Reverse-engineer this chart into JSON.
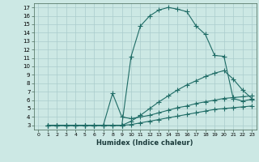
{
  "xlabel": "Humidex (Indice chaleur)",
  "bg_color": "#cce8e4",
  "grid_color": "#aacccc",
  "line_color": "#1e6b65",
  "xlim": [
    -0.5,
    23.5
  ],
  "ylim": [
    2.5,
    17.5
  ],
  "xticks": [
    0,
    1,
    2,
    3,
    4,
    5,
    6,
    7,
    8,
    9,
    10,
    11,
    12,
    13,
    14,
    15,
    16,
    17,
    18,
    19,
    20,
    21,
    22,
    23
  ],
  "yticks": [
    3,
    4,
    5,
    6,
    7,
    8,
    9,
    10,
    11,
    12,
    13,
    14,
    15,
    16,
    17
  ],
  "curve1_x": [
    1,
    2,
    3,
    4,
    5,
    6,
    7,
    9,
    10,
    11,
    12,
    13,
    14,
    15,
    16,
    17,
    18,
    19,
    20,
    21,
    22,
    23
  ],
  "curve1_y": [
    3,
    3,
    3,
    3,
    3,
    3,
    3,
    3,
    11.2,
    14.8,
    16.0,
    16.7,
    17.0,
    16.8,
    16.5,
    14.8,
    13.8,
    11.3,
    11.2,
    6.2,
    5.9,
    6.1
  ],
  "curve2_x": [
    1,
    2,
    3,
    4,
    5,
    6,
    7,
    8,
    9,
    10,
    11,
    12,
    13,
    14,
    15,
    16,
    17,
    18,
    19,
    20,
    21,
    22,
    23
  ],
  "curve2_y": [
    3,
    3,
    3,
    3,
    3,
    3,
    3,
    3,
    3,
    3.5,
    4.2,
    5.0,
    5.8,
    6.5,
    7.2,
    7.8,
    8.3,
    8.8,
    9.2,
    9.5,
    8.5,
    7.2,
    6.2
  ],
  "curve3_x": [
    1,
    2,
    3,
    4,
    5,
    6,
    7,
    8,
    9,
    10,
    11,
    12,
    13,
    14,
    15,
    16,
    17,
    18,
    19,
    20,
    21,
    22,
    23
  ],
  "curve3_y": [
    3,
    3,
    3,
    3,
    3,
    3,
    3,
    6.8,
    4.0,
    3.8,
    4.0,
    4.2,
    4.5,
    4.8,
    5.1,
    5.3,
    5.6,
    5.8,
    6.0,
    6.2,
    6.3,
    6.4,
    6.5
  ],
  "curve4_x": [
    1,
    2,
    3,
    4,
    5,
    6,
    7,
    8,
    9,
    10,
    11,
    12,
    13,
    14,
    15,
    16,
    17,
    18,
    19,
    20,
    21,
    22,
    23
  ],
  "curve4_y": [
    3,
    3,
    3,
    3,
    3,
    3,
    3,
    3,
    3,
    3.1,
    3.3,
    3.5,
    3.7,
    3.9,
    4.1,
    4.3,
    4.5,
    4.7,
    4.9,
    5.0,
    5.1,
    5.2,
    5.3
  ]
}
